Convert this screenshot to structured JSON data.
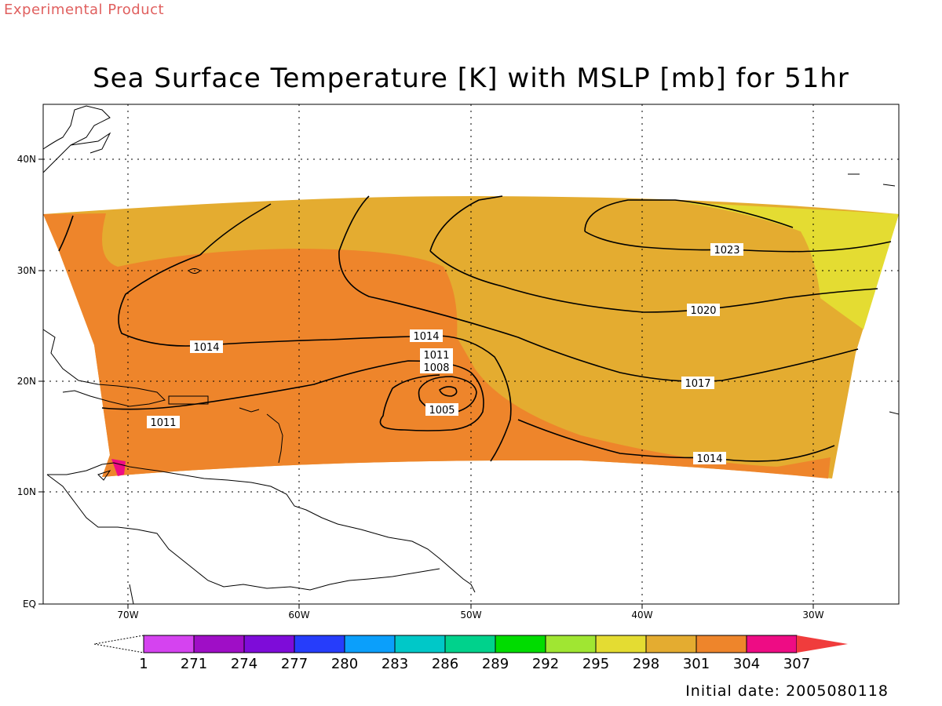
{
  "watermark": "Experimental Product",
  "title": "Sea Surface Temperature [K] with MSLP [mb] for 51hr",
  "initial_date": "Initial date: 2005080118",
  "colors": {
    "t301": "#e4ac30",
    "t298": "#e4dc32",
    "t304": "#ee852b",
    "t307": "#ee0c84",
    "land": "#ffffff"
  },
  "axes": {
    "lon_labels": [
      "70W",
      "60W",
      "50W",
      "40W",
      "30W"
    ],
    "lat_labels": [
      "40N",
      "30N",
      "20N",
      "10N",
      "EQ"
    ]
  },
  "colorbar": {
    "labels": [
      "1",
      "271",
      "274",
      "277",
      "280",
      "283",
      "286",
      "289",
      "292",
      "295",
      "298",
      "301",
      "304",
      "307"
    ],
    "colors": [
      "#d543f0",
      "#9f0ec6",
      "#7e0cd9",
      "#263dfb",
      "#0b9ffb",
      "#00c8c8",
      "#00d28c",
      "#00dc00",
      "#a0e632",
      "#e4dc32",
      "#e4ac30",
      "#ee852b",
      "#ee0c84"
    ],
    "over_color": "#f03c3c"
  },
  "contours": [
    {
      "label": "1023"
    },
    {
      "label": "1020"
    },
    {
      "label": "1017"
    },
    {
      "label": "1014"
    },
    {
      "label": "1014"
    },
    {
      "label": "1014"
    },
    {
      "label": "1011"
    },
    {
      "label": "1011"
    },
    {
      "label": "1008"
    },
    {
      "label": "1005"
    }
  ]
}
